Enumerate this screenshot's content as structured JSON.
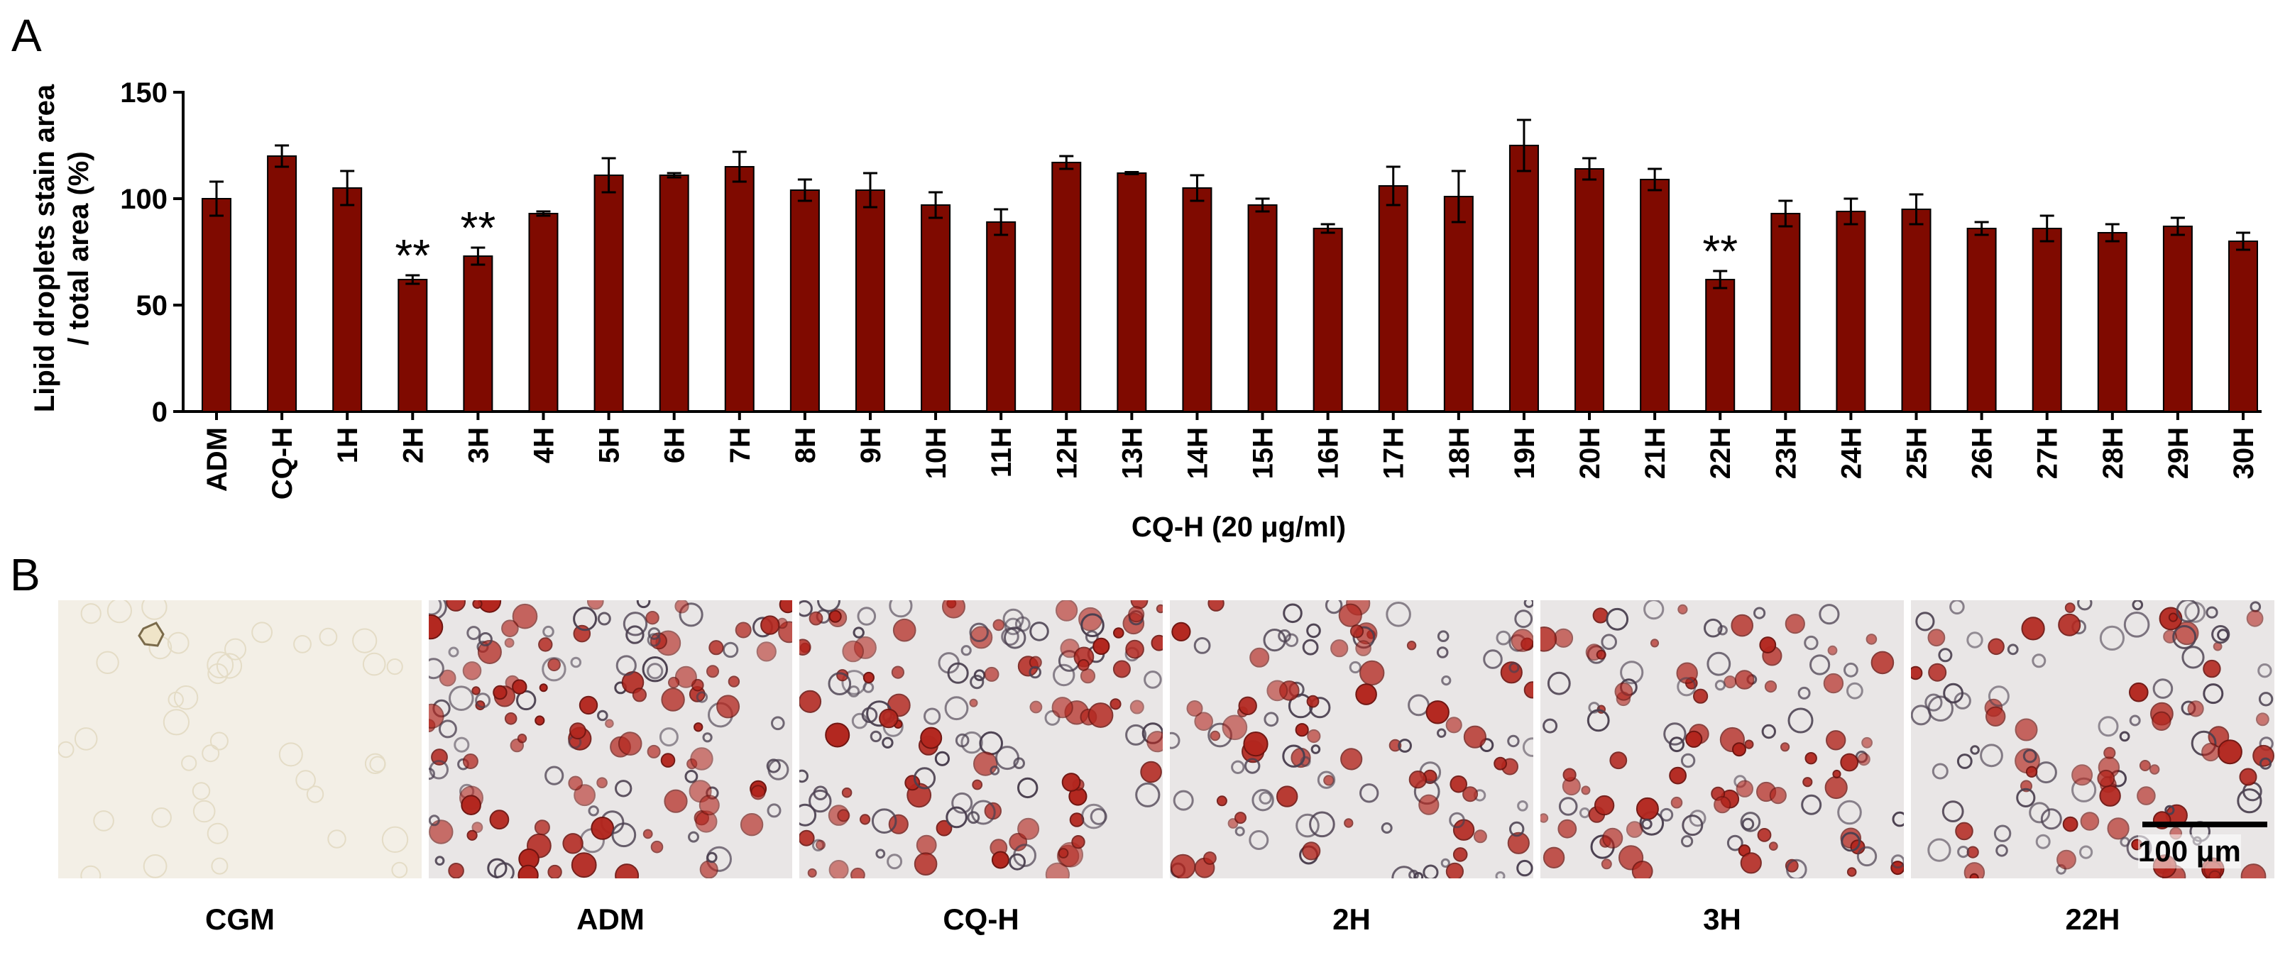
{
  "panel_a_label": "A",
  "panel_b_label": "B",
  "chart_data": {
    "type": "bar",
    "xlabel": "CQ-H (20 μg/ml)",
    "ylabel_line1": "Lipid droplets stain area",
    "ylabel_line2": "/ total area (%)",
    "ylim": [
      0,
      150
    ],
    "yticks": [
      "0",
      "50",
      "100",
      "150"
    ],
    "categories": [
      "ADM",
      "CQ-H",
      "1H",
      "2H",
      "3H",
      "4H",
      "5H",
      "6H",
      "7H",
      "8H",
      "9H",
      "10H",
      "11H",
      "12H",
      "13H",
      "14H",
      "15H",
      "16H",
      "17H",
      "18H",
      "19H",
      "20H",
      "21H",
      "22H",
      "23H",
      "24H",
      "25H",
      "26H",
      "27H",
      "28H",
      "29H",
      "30H"
    ],
    "values": [
      100,
      120,
      105,
      62,
      73,
      93,
      111,
      111,
      115,
      104,
      104,
      97,
      89,
      117,
      112,
      105,
      97,
      86,
      106,
      101,
      125,
      114,
      109,
      62,
      93,
      94,
      95,
      86,
      86,
      84,
      87,
      80
    ],
    "errors": [
      8,
      5,
      8,
      2,
      4,
      1,
      8,
      1,
      7,
      5,
      8,
      6,
      6,
      3,
      0.5,
      6,
      3,
      2,
      9,
      12,
      12,
      5,
      5,
      4,
      6,
      6,
      7,
      3,
      6,
      4,
      4,
      4
    ],
    "significance": [
      {
        "category": "2H",
        "label": "**"
      },
      {
        "category": "3H",
        "label": "**"
      },
      {
        "category": "22H",
        "label": "**"
      }
    ],
    "bar_color": "#7f0a00",
    "grid": false
  },
  "micrographs": [
    {
      "caption": "CGM",
      "stain": "none"
    },
    {
      "caption": "ADM",
      "stain": "heavy"
    },
    {
      "caption": "CQ-H",
      "stain": "heavy"
    },
    {
      "caption": "2H",
      "stain": "medium"
    },
    {
      "caption": "3H",
      "stain": "medium"
    },
    {
      "caption": "22H",
      "stain": "medium"
    }
  ],
  "scale_bar_label": "100 μm"
}
